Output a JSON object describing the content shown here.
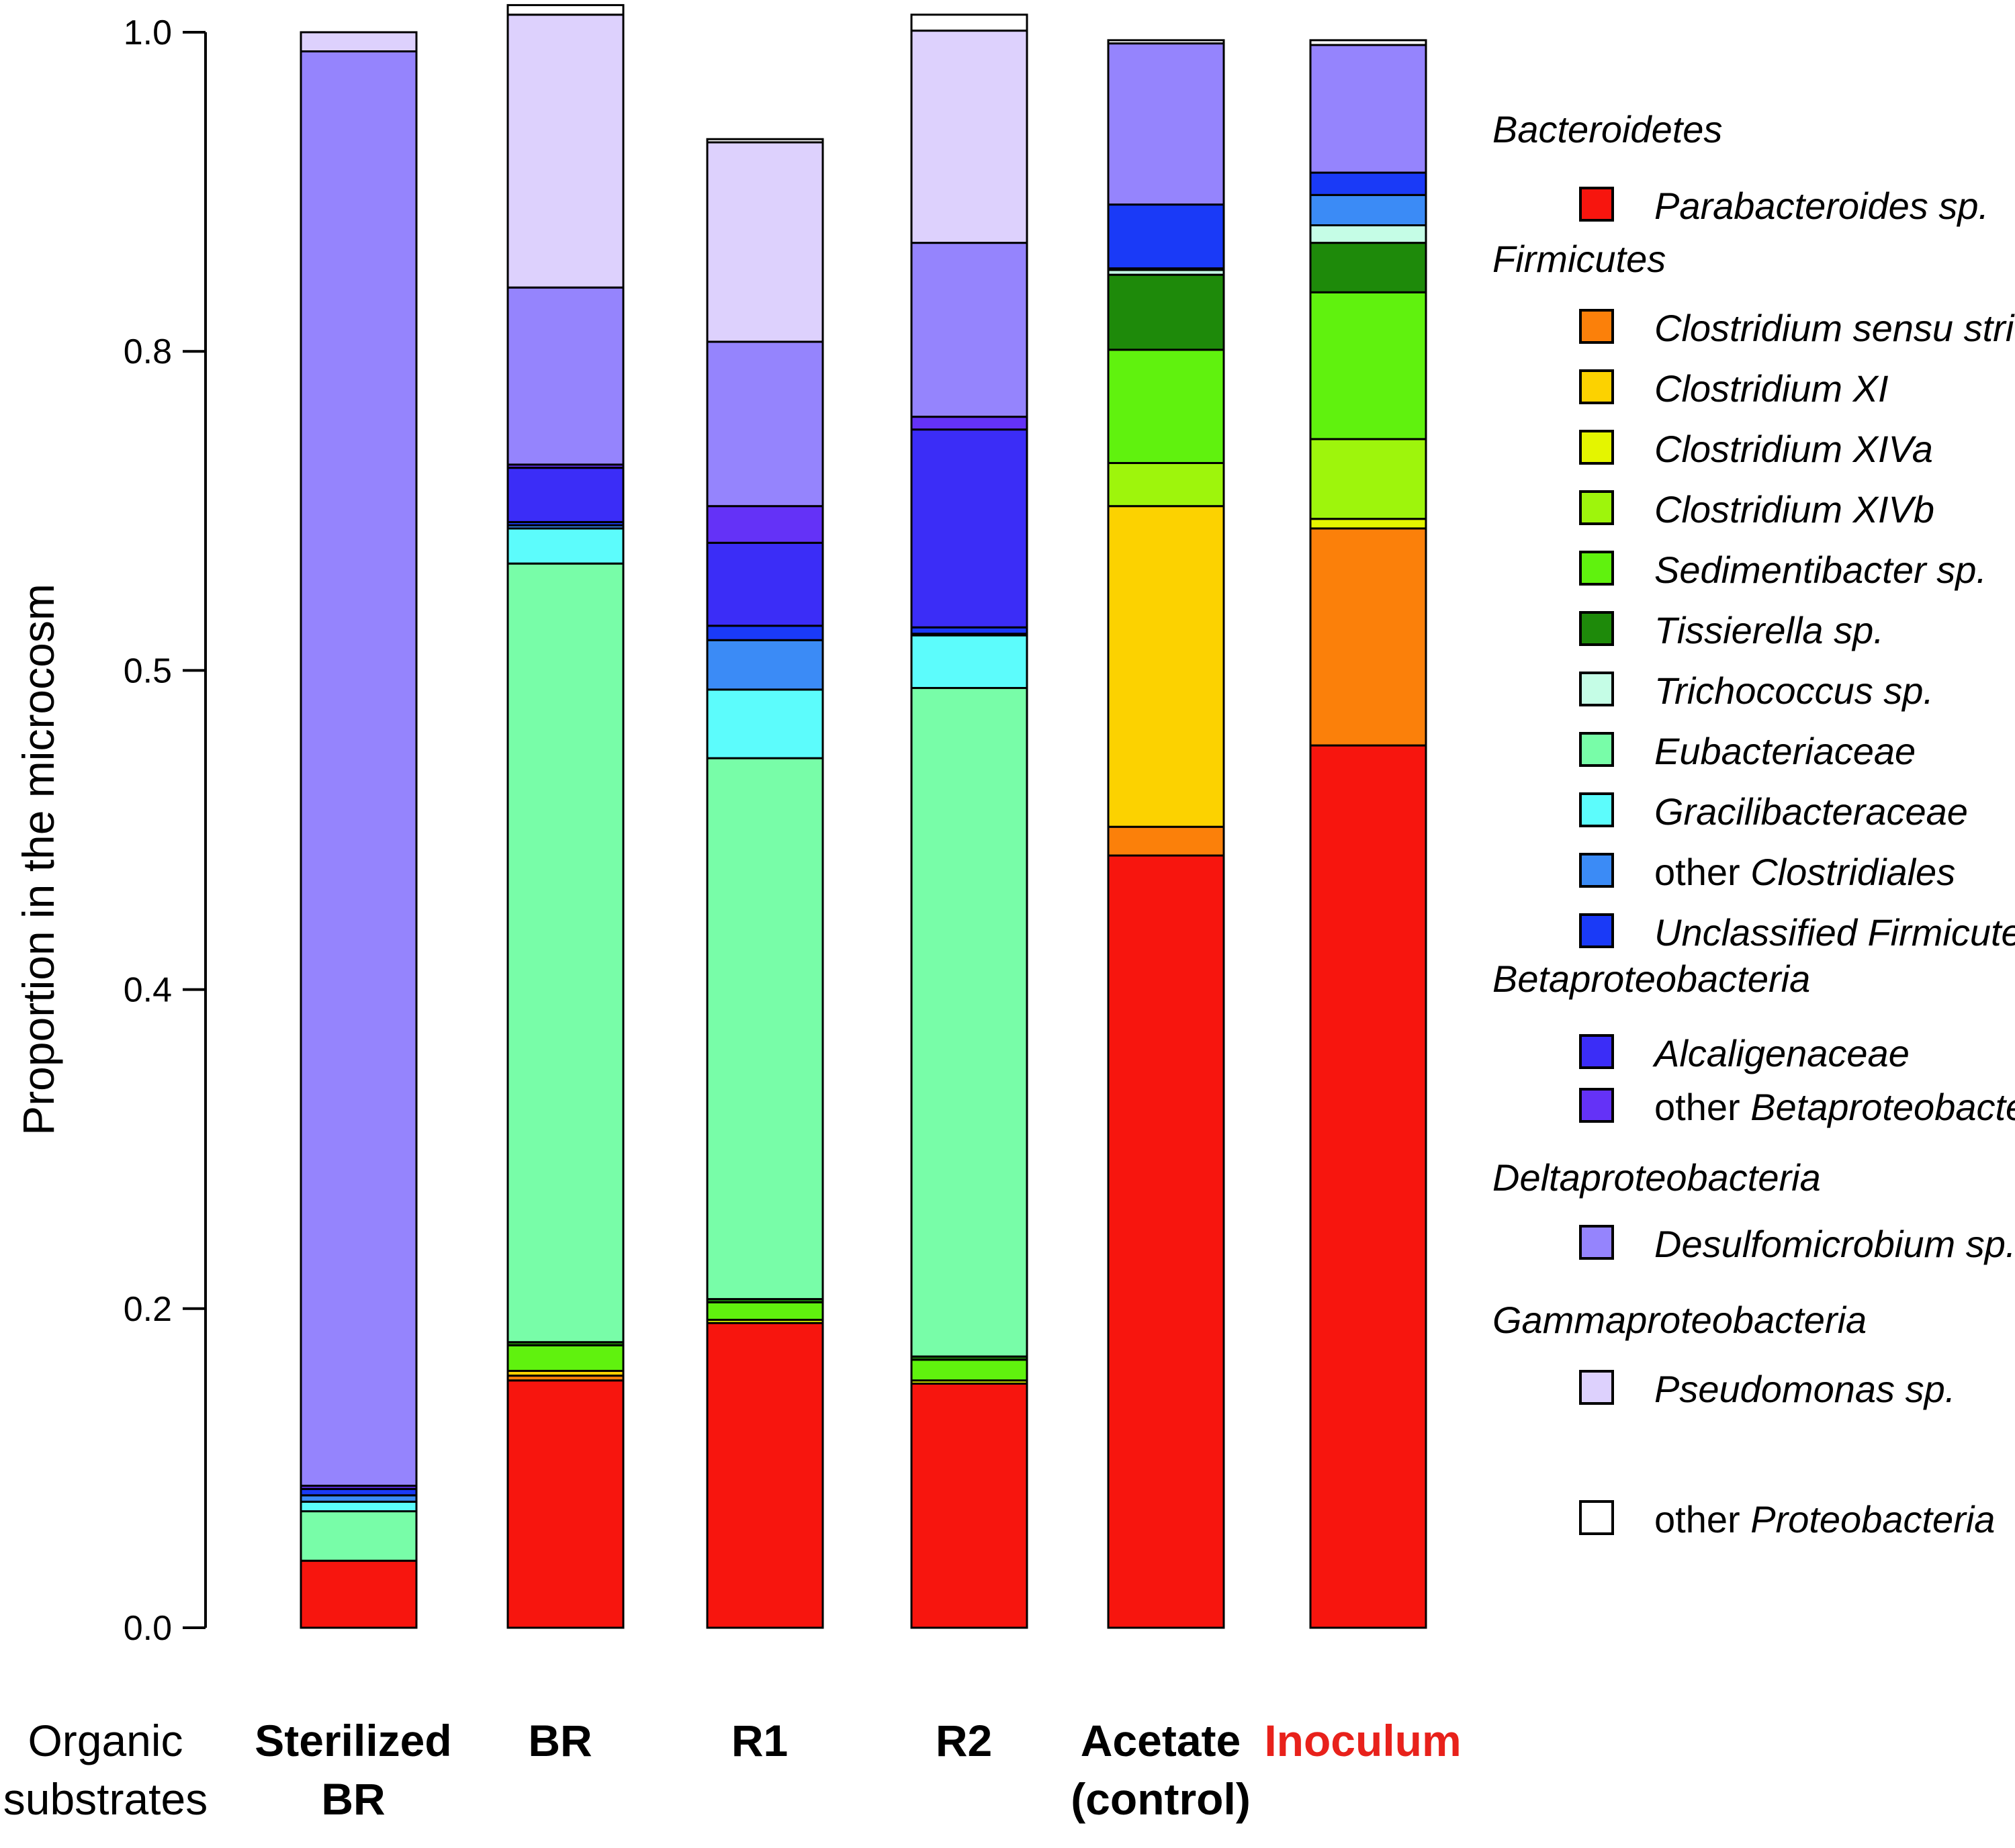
{
  "chart_data": {
    "type": "stacked-bar",
    "title": "",
    "ylabel": "Proportion in the microcosm",
    "ylim": [
      0,
      1.0
    ],
    "y_ticks": [
      "0.0",
      "0.2",
      "0.4",
      "0.5",
      "0.8",
      "1.0"
    ],
    "row_label": [
      "Organic",
      "substrates"
    ],
    "categories": [
      {
        "lines": [
          "Sterilized",
          "BR"
        ],
        "color": "#000000"
      },
      {
        "lines": [
          "BR"
        ],
        "color": "#000000"
      },
      {
        "lines": [
          "R1"
        ],
        "color": "#000000"
      },
      {
        "lines": [
          "R2"
        ],
        "color": "#000000"
      },
      {
        "lines": [
          "Acetate",
          "(control)"
        ],
        "color": "#000000"
      },
      {
        "lines": [
          "Inoculum"
        ],
        "color": "#e8211b"
      }
    ],
    "series": [
      {
        "name": "Parabacteroides sp.",
        "color": "#f7150e",
        "values": [
          0.042,
          0.155,
          0.191,
          0.153,
          0.484,
          0.553
        ]
      },
      {
        "name": "Clostridium sensu stricto",
        "color": "#fb800a",
        "values": [
          0,
          0.003,
          0,
          0,
          0.018,
          0.136
        ]
      },
      {
        "name": "Clostridium XI",
        "color": "#fcd200",
        "values": [
          0,
          0.003,
          0,
          0,
          0.201,
          0
        ]
      },
      {
        "name": "Clostridium XIVa",
        "color": "#e4f500",
        "values": [
          0,
          0,
          0.002,
          0.002,
          0,
          0.006
        ]
      },
      {
        "name": "Clostridium XIVb",
        "color": "#9ef50c",
        "values": [
          0,
          0,
          0,
          0,
          0.027,
          0.05
        ]
      },
      {
        "name": "Sedimentibacter sp.",
        "color": "#60f20e",
        "values": [
          0,
          0.016,
          0.011,
          0.013,
          0.071,
          0.092
        ]
      },
      {
        "name": "Tissierella sp.",
        "color": "#1e8a0a",
        "values": [
          0,
          0.002,
          0.002,
          0.002,
          0.047,
          0.031
        ]
      },
      {
        "name": "Trichococcus sp.",
        "color": "#c5fde6",
        "values": [
          0,
          0,
          0,
          0,
          0.003,
          0.011
        ]
      },
      {
        "name": "Eubacteriaceae",
        "color": "#78fda8",
        "values": [
          0.031,
          0.488,
          0.339,
          0.419,
          0,
          0
        ]
      },
      {
        "name": "Gracilibacteraceae",
        "color": "#5cfcfc",
        "values": [
          0.006,
          0.022,
          0.043,
          0.033,
          0,
          0
        ]
      },
      {
        "name": "other Clostridiales",
        "color": "#3b8bf6",
        "values": [
          0.004,
          0.002,
          0.031,
          0.001,
          0.001,
          0.019
        ]
      },
      {
        "name": "Unclassified Firmicutes",
        "color": "#1a3af7",
        "values": [
          0.004,
          0.002,
          0.009,
          0.004,
          0.04,
          0.014
        ]
      },
      {
        "name": "Alcaligenaceae",
        "color": "#3b2df7",
        "values": [
          0,
          0.034,
          0.052,
          0.124,
          0,
          0
        ]
      },
      {
        "name": "other Betaproteobacteria",
        "color": "#6432f7",
        "values": [
          0.002,
          0.002,
          0.023,
          0.008,
          0,
          0
        ]
      },
      {
        "name": "Desulfomicrobium sp.",
        "color": "#9584fd",
        "values": [
          0.899,
          0.111,
          0.103,
          0.109,
          0.101,
          0.08
        ]
      },
      {
        "name": "Pseudomonas sp.",
        "color": "#ddd1fd",
        "values": [
          0.012,
          0.171,
          0.125,
          0.133,
          0,
          0
        ]
      },
      {
        "name": "other Proteobacteria",
        "color": "#ffffff",
        "values": [
          0,
          0.006,
          0.002,
          0.01,
          0.002,
          0.003
        ]
      }
    ],
    "legend": [
      {
        "group": "Bacteroidetes",
        "items": [
          {
            "parts": [
              {
                "t": "Parabacteroides sp.",
                "i": true
              }
            ],
            "color": "#f7150e"
          }
        ]
      },
      {
        "group": "Firmicutes",
        "items": [
          {
            "parts": [
              {
                "t": "Clostridium sensu stricto",
                "i": true
              }
            ],
            "color": "#fb800a"
          },
          {
            "parts": [
              {
                "t": "Clostridium XI",
                "i": true
              }
            ],
            "color": "#fcd200"
          },
          {
            "parts": [
              {
                "t": "Clostridium XIVa",
                "i": true
              }
            ],
            "color": "#e4f500"
          },
          {
            "parts": [
              {
                "t": "Clostridium XIVb",
                "i": true
              }
            ],
            "color": "#9ef50c"
          },
          {
            "parts": [
              {
                "t": "Sedimentibacter sp.",
                "i": true
              }
            ],
            "color": "#60f20e"
          },
          {
            "parts": [
              {
                "t": "Tissierella sp.",
                "i": true
              }
            ],
            "color": "#1e8a0a"
          },
          {
            "parts": [
              {
                "t": "Trichococcus sp.",
                "i": true
              }
            ],
            "color": "#c5fde6"
          },
          {
            "parts": [
              {
                "t": "Eubacteriaceae",
                "i": true
              }
            ],
            "color": "#78fda8"
          },
          {
            "parts": [
              {
                "t": "Gracilibacteraceae",
                "i": true
              }
            ],
            "color": "#5cfcfc"
          },
          {
            "parts": [
              {
                "t": "other ",
                "i": false
              },
              {
                "t": "Clostridiales",
                "i": true
              }
            ],
            "color": "#3b8bf6"
          },
          {
            "parts": [
              {
                "t": "Unclassified Firmicutes",
                "i": true
              }
            ],
            "color": "#1a3af7"
          }
        ]
      },
      {
        "group": "Betaproteobacteria",
        "items": [
          {
            "parts": [
              {
                "t": "Alcaligenaceae",
                "i": true
              }
            ],
            "color": "#3b2df7"
          },
          {
            "parts": [
              {
                "t": "other ",
                "i": false
              },
              {
                "t": "Betaproteobacteria",
                "i": true
              }
            ],
            "color": "#6432f7"
          }
        ]
      },
      {
        "group": "Deltaproteobacteria",
        "items": [
          {
            "parts": [
              {
                "t": "Desulfomicrobium sp.",
                "i": true
              }
            ],
            "color": "#9584fd"
          }
        ]
      },
      {
        "group": "Gammaproteobacteria",
        "items": [
          {
            "parts": [
              {
                "t": "Pseudomonas sp.",
                "i": true
              }
            ],
            "color": "#ddd1fd"
          }
        ]
      },
      {
        "group": "",
        "items": [
          {
            "parts": [
              {
                "t": "other ",
                "i": false
              },
              {
                "t": "Proteobacteria",
                "i": true
              }
            ],
            "color": "#ffffff"
          }
        ]
      }
    ]
  }
}
